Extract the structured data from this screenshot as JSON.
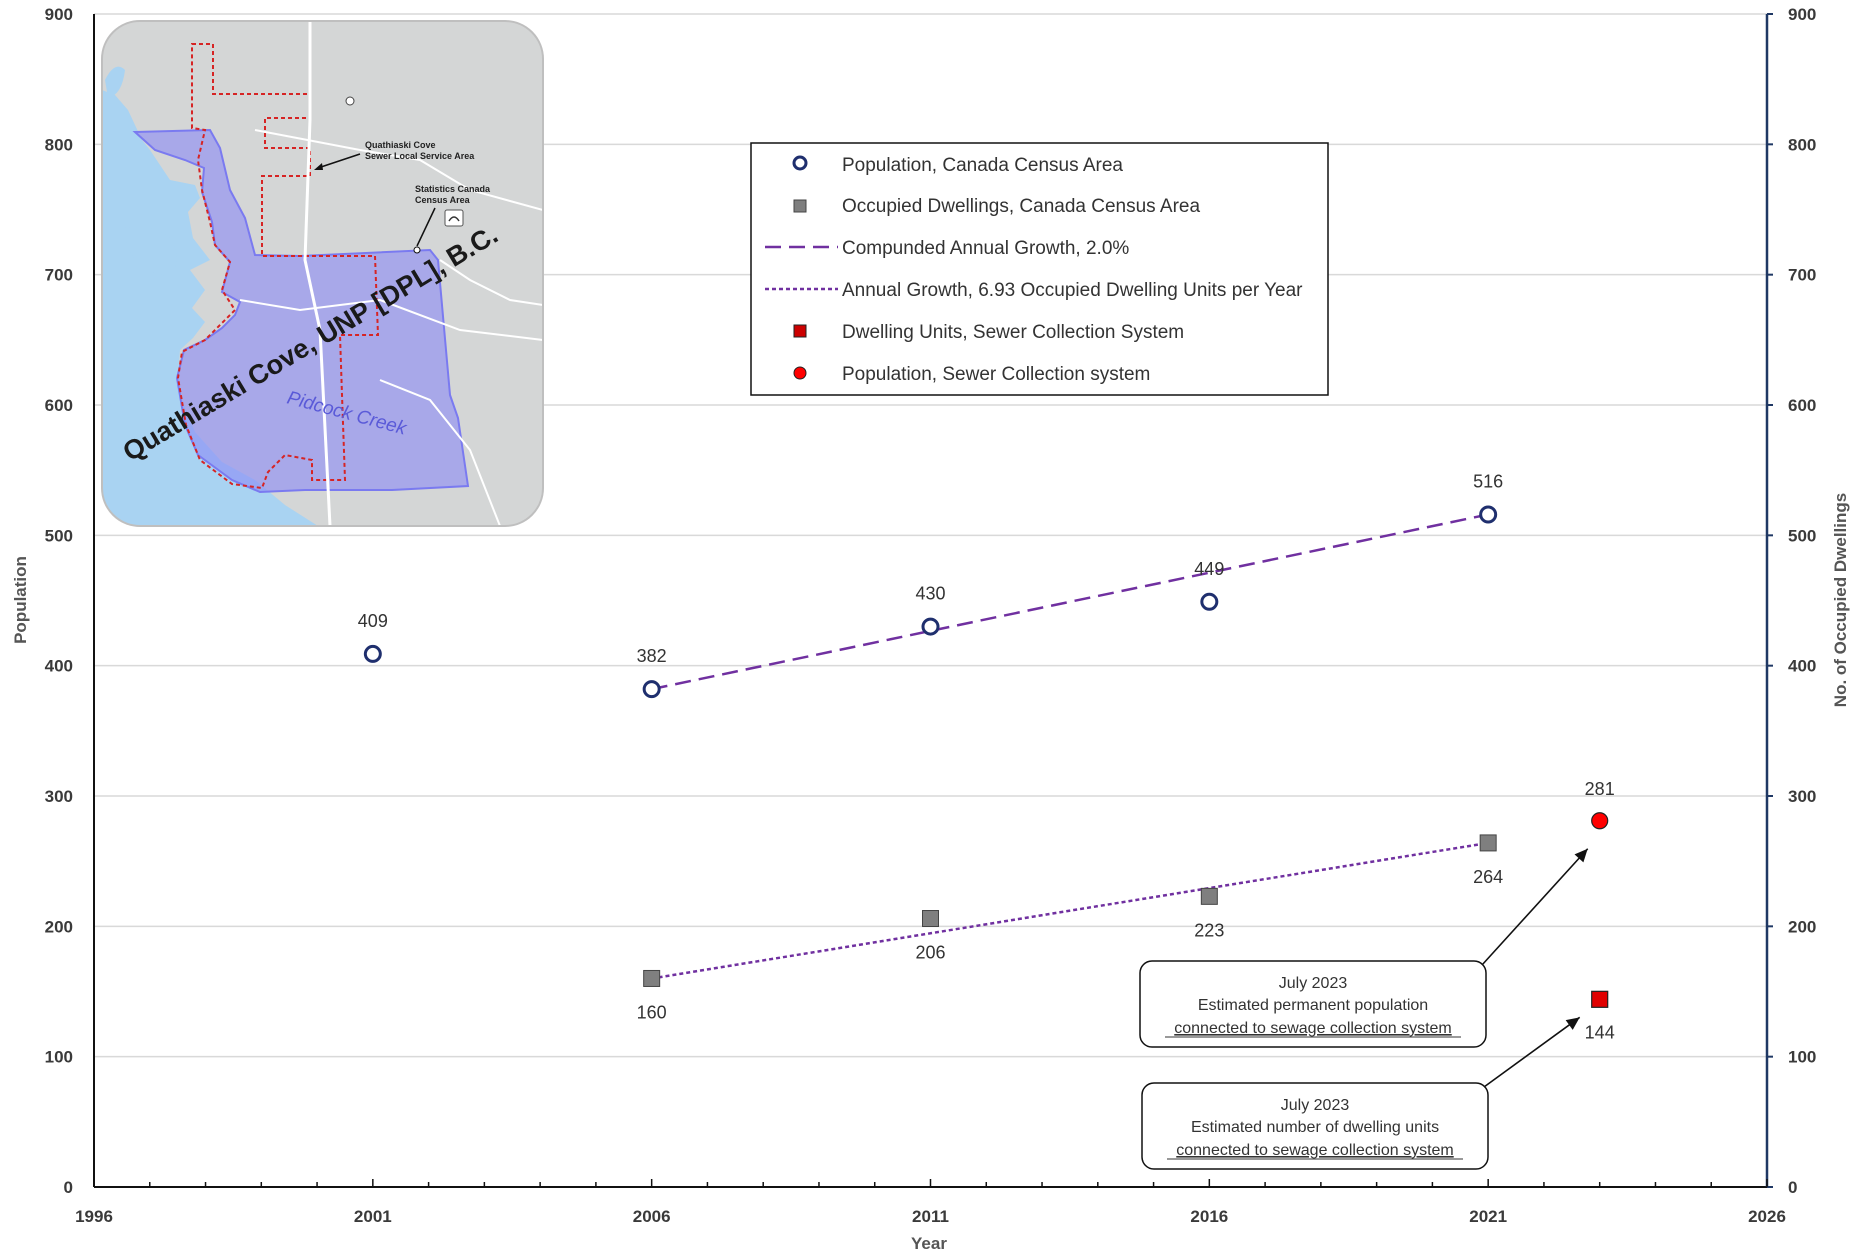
{
  "chart_data": {
    "type": "scatter",
    "xlabel": "Year",
    "ylabel": "Population",
    "y2label": "No. of Occupied Dwellings",
    "xlim": [
      1996,
      2026
    ],
    "ylim": [
      0,
      900
    ],
    "y2lim": [
      0,
      900
    ],
    "x_ticks": [
      "1996",
      "2001",
      "2006",
      "2011",
      "2016",
      "2021",
      "2026"
    ],
    "y_ticks": [
      "0",
      "100",
      "200",
      "300",
      "400",
      "500",
      "600",
      "700",
      "800",
      "900"
    ],
    "grid": "horizontal",
    "legend_position": "top-center",
    "series": [
      {
        "name": "Population, Canada Census Area",
        "marker": "open-circle",
        "color": "#1f2f6e",
        "points": [
          {
            "x": 2001,
            "y": 409,
            "label": "409"
          },
          {
            "x": 2006,
            "y": 382,
            "label": "382"
          },
          {
            "x": 2011,
            "y": 430,
            "label": "430"
          },
          {
            "x": 2016,
            "y": 449,
            "label": "449"
          },
          {
            "x": 2021,
            "y": 516,
            "label": "516"
          }
        ]
      },
      {
        "name": "Occupied Dwellings, Canada Census Area",
        "marker": "gray-square",
        "color": "#7f7f7f",
        "points": [
          {
            "x": 2006,
            "y": 160,
            "label": "160"
          },
          {
            "x": 2011,
            "y": 206,
            "label": "206"
          },
          {
            "x": 2016,
            "y": 223,
            "label": "223"
          },
          {
            "x": 2021,
            "y": 264,
            "label": "264"
          }
        ]
      },
      {
        "name": "Compunded Annual Growth, 2.0%",
        "marker": "long-dash-line",
        "color": "#7030a0",
        "x": [
          2006,
          2021
        ],
        "y": [
          382,
          516
        ]
      },
      {
        "name": "Annual Growth, 6.93 Occupied Dwelling Units per Year",
        "marker": "short-dash-line",
        "color": "#7030a0",
        "x": [
          2006,
          2021
        ],
        "y": [
          160,
          264
        ]
      },
      {
        "name": "Dwelling Units, Sewer Collection System",
        "marker": "red-square",
        "color": "#e00000",
        "points": [
          {
            "x": 2023,
            "y": 144,
            "label": "144"
          }
        ]
      },
      {
        "name": "Population, Sewer Collection system",
        "marker": "red-circle",
        "color": "#ff0000",
        "points": [
          {
            "x": 2023,
            "y": 281,
            "label": "281"
          }
        ]
      }
    ],
    "annotations": [
      {
        "lines": [
          "July 2023",
          "Estimated permanent population",
          "connected to sewage collection system"
        ],
        "target": {
          "x": 2023,
          "y": 281
        }
      },
      {
        "lines": [
          "July 2023",
          "Estimated number of dwelling units",
          "connected to sewage collection system"
        ],
        "target": {
          "x": 2023,
          "y": 144
        }
      }
    ]
  },
  "map_inset": {
    "title": "Quathiaski Cove, UNP [DPL], B.C.",
    "creek_label": "Pidcock Creek",
    "sewer_label_line1": "Quathiaski Cove",
    "sewer_label_line2": "Sewer Local Service Area",
    "census_label_line1": "Statistics Canada",
    "census_label_line2": "Census Area"
  },
  "colors": {
    "population_marker": "#1f2f6e",
    "dwelling_marker": "#7f7f7f",
    "trend_line": "#7030a0",
    "sewer_marker": "#e00000",
    "right_axis": "#1f3864",
    "map_area": "#a7a7f2",
    "map_water": "#a9d3f2",
    "map_boundary": "#d62424"
  }
}
